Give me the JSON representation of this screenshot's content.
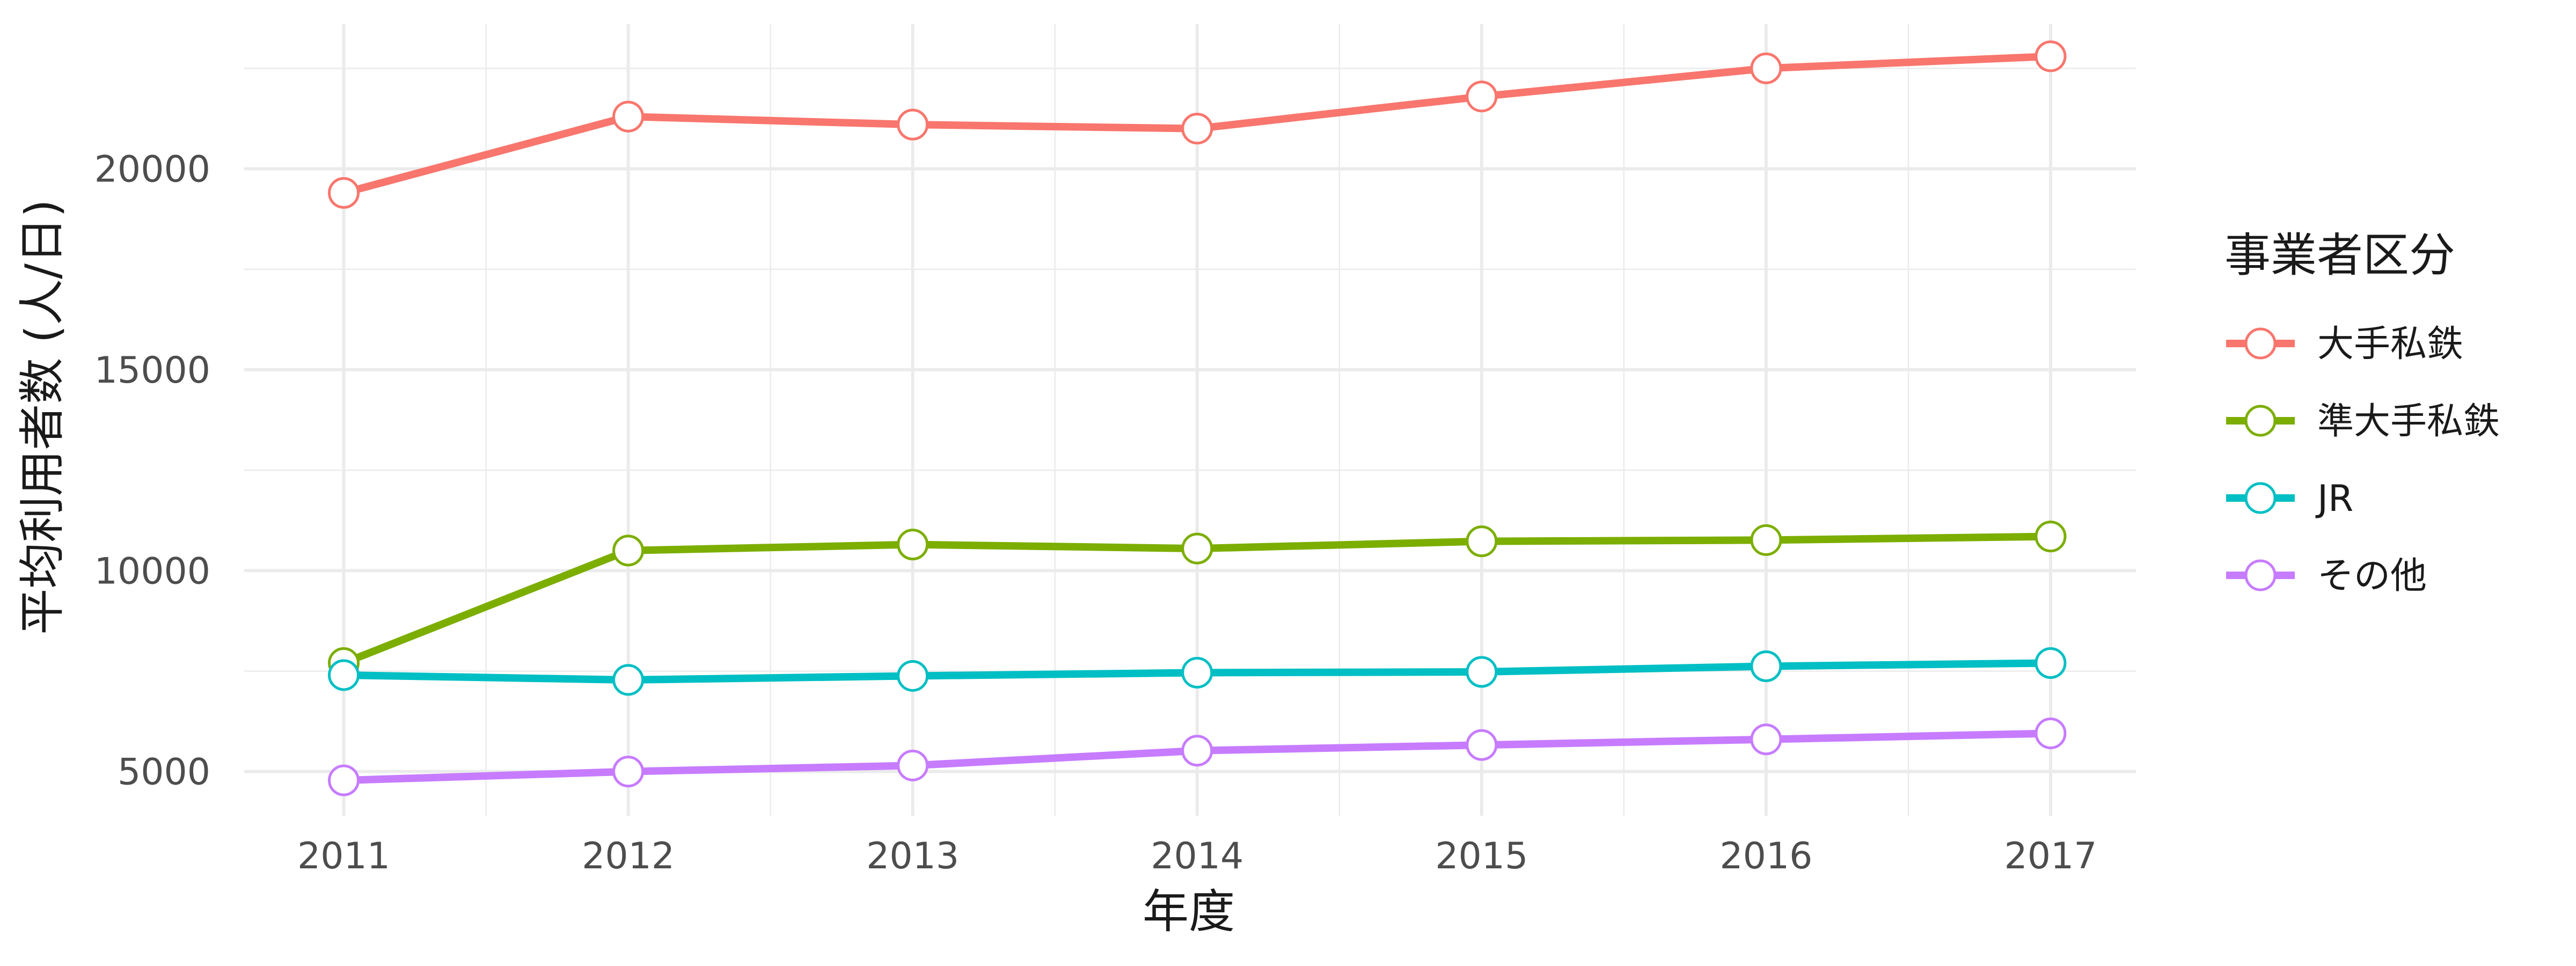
{
  "chart_data": {
    "type": "line",
    "title": "",
    "xlabel": "年度",
    "ylabel": "平均利用者数 (人/日)",
    "x": [
      2011,
      2012,
      2013,
      2014,
      2015,
      2016,
      2017
    ],
    "x_ticks": [
      "2011",
      "2012",
      "2013",
      "2014",
      "2015",
      "2016",
      "2017"
    ],
    "y_ticks": [
      "5000",
      "10000",
      "15000",
      "20000"
    ],
    "ylim": [
      3900,
      23600
    ],
    "xlim": [
      2010.65,
      2017.3
    ],
    "grid": true,
    "legend_title": "事業者区分",
    "legend_position": "right",
    "series": [
      {
        "name": "大手私鉄",
        "color": "#F8766D",
        "values": [
          19400,
          21300,
          21100,
          21000,
          21800,
          22500,
          22800
        ]
      },
      {
        "name": "準大手私鉄",
        "color": "#7CAE00",
        "values": [
          7700,
          10500,
          10650,
          10550,
          10730,
          10760,
          10850
        ]
      },
      {
        "name": "JR",
        "color": "#00BFC4",
        "values": [
          7400,
          7280,
          7380,
          7460,
          7480,
          7620,
          7700
        ]
      },
      {
        "name": "その他",
        "color": "#C77CFF",
        "values": [
          4780,
          5000,
          5150,
          5520,
          5660,
          5800,
          5950
        ]
      }
    ]
  }
}
